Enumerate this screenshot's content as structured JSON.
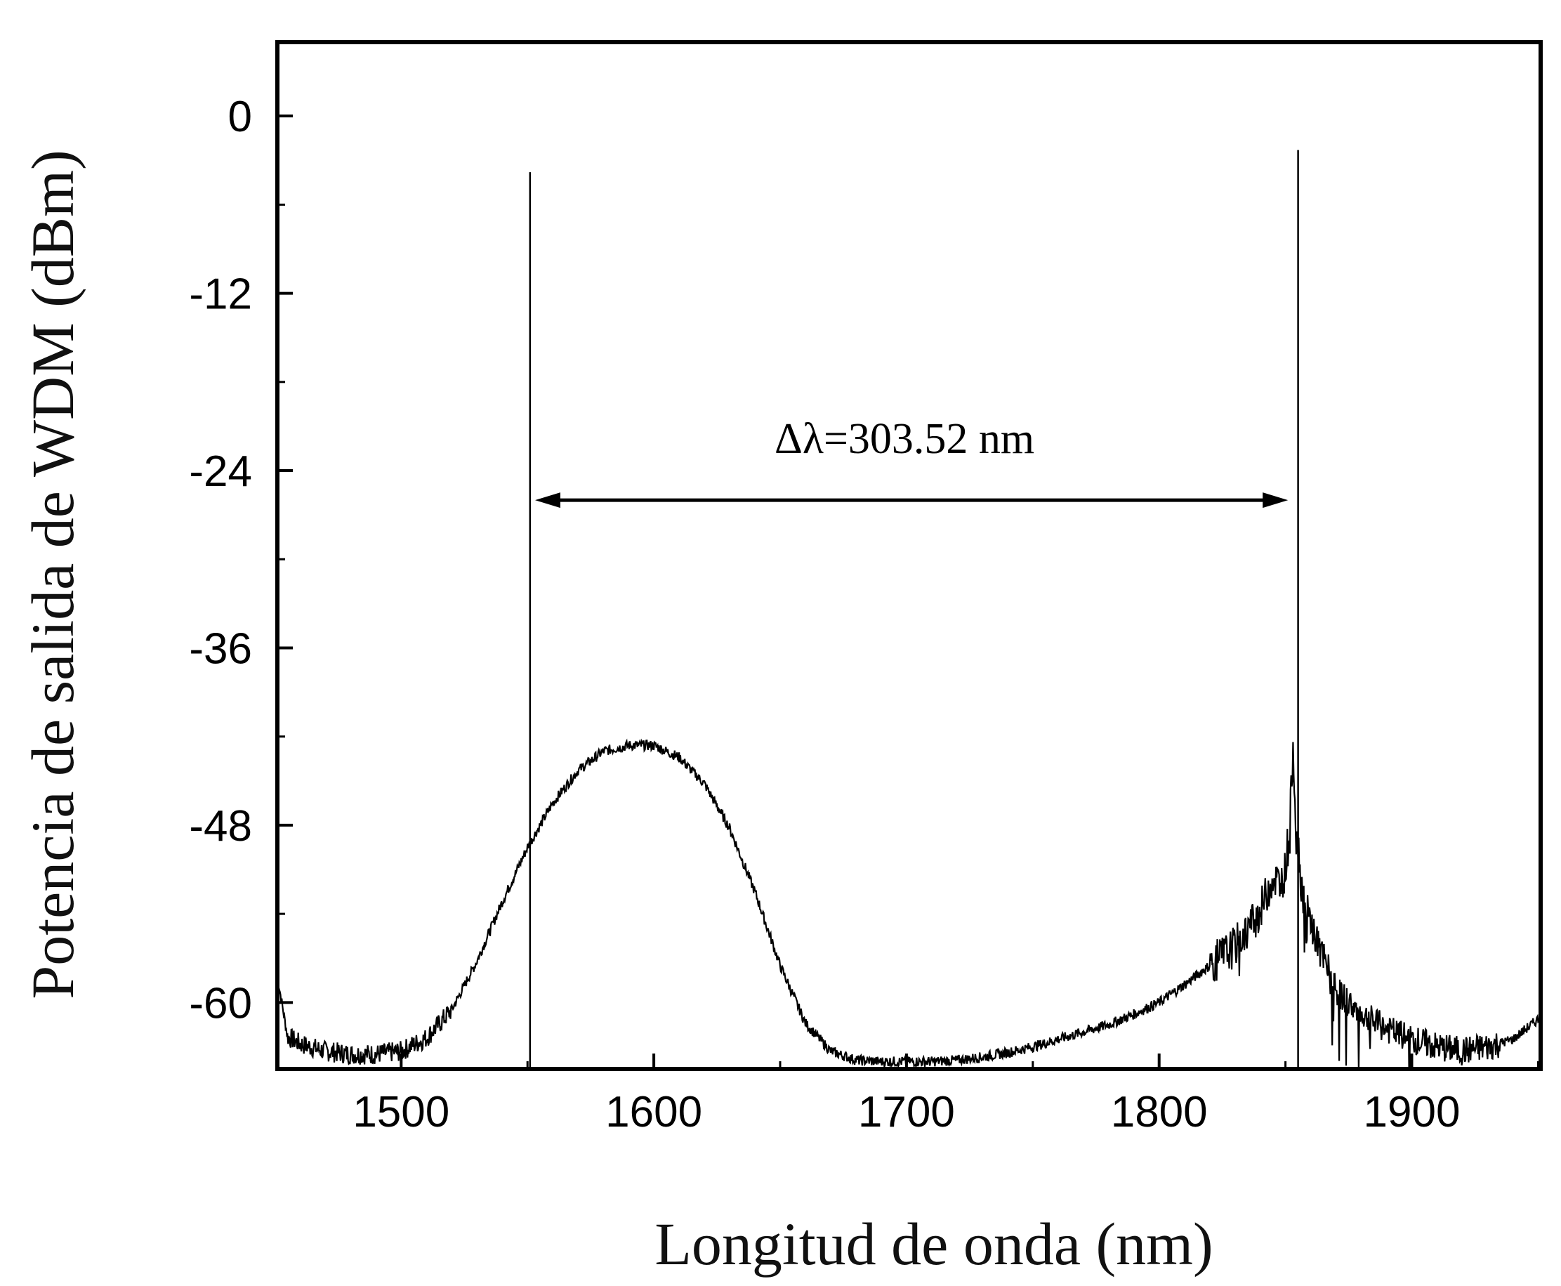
{
  "chart_data": {
    "type": "line",
    "title": "",
    "xlabel": "Longitud de onda (nm)",
    "ylabel": "Potencia de salida de WDM (dBm)",
    "xlim": [
      1451,
      1951
    ],
    "ylim": [
      -64.5,
      5
    ],
    "x_ticks": [
      1500,
      1600,
      1700,
      1800,
      1900
    ],
    "x_tick_labels": [
      "1500",
      "1600",
      "1700",
      "1800",
      "1900"
    ],
    "y_ticks": [
      0,
      -12,
      -24,
      -36,
      -48,
      -60
    ],
    "y_tick_labels": [
      "0",
      "-12",
      "-24",
      "-36",
      "-48",
      "-60"
    ],
    "grid": false,
    "legend": "none",
    "series": [
      {
        "x": [
          1451,
          1455,
          1460,
          1470,
          1480,
          1490,
          1500,
          1510,
          1520,
          1530,
          1540,
          1550,
          1560,
          1570,
          1580,
          1590,
          1600,
          1610,
          1620,
          1630,
          1640,
          1650,
          1660,
          1670,
          1680,
          1690,
          1700,
          1710,
          1720,
          1730,
          1740,
          1750,
          1760,
          1770,
          1780,
          1790,
          1800,
          1810,
          1820,
          1830,
          1840,
          1845,
          1848,
          1850,
          1852,
          1853,
          1854,
          1856,
          1858,
          1860,
          1865,
          1870,
          1880,
          1890,
          1900,
          1910,
          1920,
          1930,
          1940,
          1951
        ],
        "y": [
          -58.2,
          -62.3,
          -62.8,
          -63.3,
          -63.5,
          -63.5,
          -63.3,
          -62.4,
          -60.5,
          -57.2,
          -53.2,
          -49.5,
          -46.5,
          -44.3,
          -43.0,
          -42.6,
          -42.6,
          -43.4,
          -45.2,
          -48.2,
          -52.5,
          -57.5,
          -61.4,
          -63.3,
          -63.9,
          -64.0,
          -64.0,
          -64.0,
          -63.9,
          -63.7,
          -63.4,
          -63.0,
          -62.5,
          -62.0,
          -61.5,
          -60.8,
          -60.0,
          -58.8,
          -57.5,
          -56.2,
          -53.8,
          -51.5,
          -52.0,
          -51.0,
          -47.0,
          -42.5,
          -47.0,
          -51.5,
          -53.8,
          -54.6,
          -57.2,
          -59.2,
          -60.8,
          -61.8,
          -62.5,
          -63.0,
          -63.3,
          -63.0,
          -62.5,
          -61.0
        ]
      },
      {
        "x": [
          1551,
          1855
        ],
        "y": [
          -3.8,
          -2.3
        ]
      }
    ],
    "annotations": [
      {
        "text": "Δλ=303.52 nm",
        "arrow_from": 1553,
        "arrow_to": 1851,
        "arrow_y": -26
      }
    ]
  }
}
